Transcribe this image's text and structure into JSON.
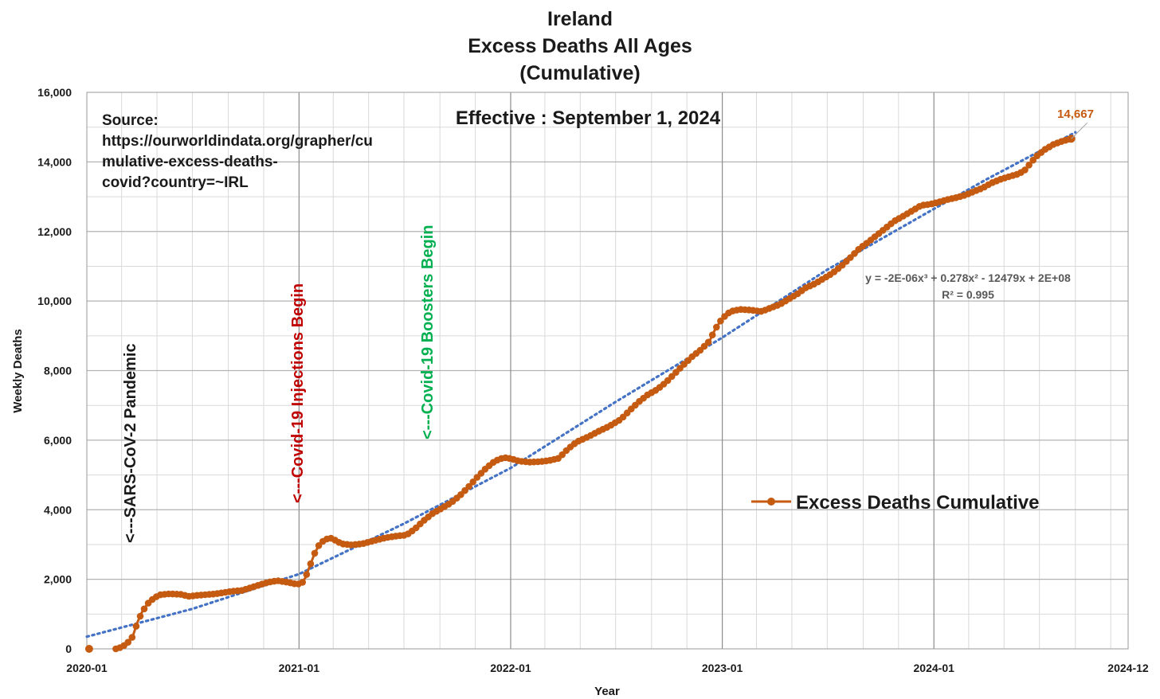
{
  "chart_data": {
    "type": "line",
    "title_lines": [
      "Ireland",
      "Excess Deaths All Ages",
      "(Cumulative)"
    ],
    "subtitle": "Effective : September 1, 2024",
    "source_lines": [
      "Source:",
      "https://ourworldindata.org/grapher/cu",
      "mulative-excess-deaths-",
      "covid?country=~IRL"
    ],
    "xlabel": "Year",
    "ylabel": "Weekly Deaths",
    "x_ticks": [
      "2020-01",
      "2021-01",
      "2022-01",
      "2023-01",
      "2024-01",
      "2024-12"
    ],
    "y_ticks": [
      "0",
      "2,000",
      "4,000",
      "6,000",
      "8,000",
      "10,000",
      "12,000",
      "14,000",
      "16,000"
    ],
    "ylim": [
      0,
      16000
    ],
    "grid": true,
    "legend_position": "right",
    "colors": {
      "series": "#c55a11",
      "trend": "#4472c4",
      "grid": "#b3b3b3",
      "pandemic": "#1a1a1a",
      "injections": "#c00000",
      "boosters": "#00b050"
    },
    "events": [
      {
        "label": "<---SARS-CoV-2 Pandemic",
        "date": "2020-03-15"
      },
      {
        "label": "<---Covid-19 Injections Begin",
        "date": "2020-12-29"
      },
      {
        "label": "<---Covid-19 Boosters Begin",
        "date": "2021-08-10"
      }
    ],
    "trendline": {
      "equation": "y = -2E-06x³ + 0.278x² - 12479x + 2E+08",
      "r2": "R² = 0.995",
      "points": [
        [
          "2020-01-01",
          350
        ],
        [
          "2020-07-01",
          1150
        ],
        [
          "2021-01-01",
          2150
        ],
        [
          "2021-07-01",
          3600
        ],
        [
          "2022-01-01",
          5200
        ],
        [
          "2022-07-01",
          7100
        ],
        [
          "2023-01-01",
          8950
        ],
        [
          "2023-07-01",
          10900
        ],
        [
          "2024-01-01",
          12650
        ],
        [
          "2024-04-01",
          13500
        ],
        [
          "2024-09-01",
          14850
        ]
      ]
    },
    "last_point_label": "14,667",
    "series": [
      {
        "name": "Excess Deaths Cumulative",
        "points": [
          [
            "2020-01-05",
            0
          ],
          [
            "2020-02-20",
            0
          ],
          [
            "2020-03-01",
            50
          ],
          [
            "2020-03-10",
            150
          ],
          [
            "2020-03-20",
            350
          ],
          [
            "2020-03-28",
            750
          ],
          [
            "2020-04-05",
            1050
          ],
          [
            "2020-04-15",
            1300
          ],
          [
            "2020-04-25",
            1450
          ],
          [
            "2020-05-05",
            1550
          ],
          [
            "2020-05-20",
            1580
          ],
          [
            "2020-06-10",
            1570
          ],
          [
            "2020-06-25",
            1510
          ],
          [
            "2020-07-10",
            1540
          ],
          [
            "2020-07-25",
            1560
          ],
          [
            "2020-08-10",
            1580
          ],
          [
            "2020-08-25",
            1620
          ],
          [
            "2020-09-10",
            1660
          ],
          [
            "2020-09-25",
            1680
          ],
          [
            "2020-10-10",
            1760
          ],
          [
            "2020-10-25",
            1840
          ],
          [
            "2020-11-10",
            1920
          ],
          [
            "2020-11-25",
            1960
          ],
          [
            "2020-12-10",
            1920
          ],
          [
            "2020-12-25",
            1870
          ],
          [
            "2021-01-05",
            1860
          ],
          [
            "2021-01-12",
            2050
          ],
          [
            "2021-01-20",
            2400
          ],
          [
            "2021-01-28",
            2750
          ],
          [
            "2021-02-05",
            3000
          ],
          [
            "2021-02-15",
            3150
          ],
          [
            "2021-02-25",
            3180
          ],
          [
            "2021-03-05",
            3120
          ],
          [
            "2021-03-15",
            3020
          ],
          [
            "2021-04-01",
            2990
          ],
          [
            "2021-04-20",
            3020
          ],
          [
            "2021-05-10",
            3110
          ],
          [
            "2021-06-01",
            3200
          ],
          [
            "2021-06-20",
            3250
          ],
          [
            "2021-07-05",
            3270
          ],
          [
            "2021-07-20",
            3450
          ],
          [
            "2021-08-05",
            3700
          ],
          [
            "2021-08-20",
            3900
          ],
          [
            "2021-09-05",
            4050
          ],
          [
            "2021-09-20",
            4200
          ],
          [
            "2021-10-05",
            4400
          ],
          [
            "2021-10-20",
            4650
          ],
          [
            "2021-11-05",
            4950
          ],
          [
            "2021-11-20",
            5200
          ],
          [
            "2021-12-05",
            5400
          ],
          [
            "2021-12-20",
            5500
          ],
          [
            "2022-01-01",
            5470
          ],
          [
            "2022-01-15",
            5400
          ],
          [
            "2022-02-01",
            5370
          ],
          [
            "2022-02-20",
            5380
          ],
          [
            "2022-03-10",
            5420
          ],
          [
            "2022-03-25",
            5480
          ],
          [
            "2022-04-10",
            5750
          ],
          [
            "2022-04-25",
            5950
          ],
          [
            "2022-05-15",
            6100
          ],
          [
            "2022-06-01",
            6250
          ],
          [
            "2022-06-20",
            6400
          ],
          [
            "2022-07-10",
            6600
          ],
          [
            "2022-07-25",
            6850
          ],
          [
            "2022-08-10",
            7100
          ],
          [
            "2022-08-25",
            7300
          ],
          [
            "2022-09-10",
            7450
          ],
          [
            "2022-09-25",
            7650
          ],
          [
            "2022-10-10",
            7900
          ],
          [
            "2022-10-25",
            8150
          ],
          [
            "2022-11-10",
            8400
          ],
          [
            "2022-11-25",
            8600
          ],
          [
            "2022-12-10",
            8850
          ],
          [
            "2022-12-20",
            9200
          ],
          [
            "2023-01-01",
            9500
          ],
          [
            "2023-01-15",
            9700
          ],
          [
            "2023-02-01",
            9760
          ],
          [
            "2023-02-20",
            9740
          ],
          [
            "2023-03-10",
            9700
          ],
          [
            "2023-03-25",
            9800
          ],
          [
            "2023-04-10",
            9900
          ],
          [
            "2023-04-25",
            10050
          ],
          [
            "2023-05-10",
            10200
          ],
          [
            "2023-05-25",
            10380
          ],
          [
            "2023-06-10",
            10500
          ],
          [
            "2023-06-25",
            10650
          ],
          [
            "2023-07-10",
            10800
          ],
          [
            "2023-07-25",
            11000
          ],
          [
            "2023-08-10",
            11250
          ],
          [
            "2023-08-25",
            11500
          ],
          [
            "2023-09-10",
            11700
          ],
          [
            "2023-09-25",
            11900
          ],
          [
            "2023-10-10",
            12100
          ],
          [
            "2023-10-25",
            12300
          ],
          [
            "2023-11-10",
            12450
          ],
          [
            "2023-11-25",
            12600
          ],
          [
            "2023-12-10",
            12750
          ],
          [
            "2023-12-25",
            12780
          ],
          [
            "2024-01-10",
            12850
          ],
          [
            "2024-01-25",
            12920
          ],
          [
            "2024-02-10",
            12980
          ],
          [
            "2024-02-25",
            13050
          ],
          [
            "2024-03-10",
            13150
          ],
          [
            "2024-03-25",
            13250
          ],
          [
            "2024-04-10",
            13400
          ],
          [
            "2024-04-25",
            13500
          ],
          [
            "2024-05-10",
            13580
          ],
          [
            "2024-05-25",
            13650
          ],
          [
            "2024-06-05",
            13750
          ],
          [
            "2024-06-15",
            13950
          ],
          [
            "2024-06-25",
            14150
          ],
          [
            "2024-07-10",
            14350
          ],
          [
            "2024-07-25",
            14500
          ],
          [
            "2024-08-10",
            14600
          ],
          [
            "2024-08-25",
            14667
          ]
        ]
      }
    ]
  }
}
